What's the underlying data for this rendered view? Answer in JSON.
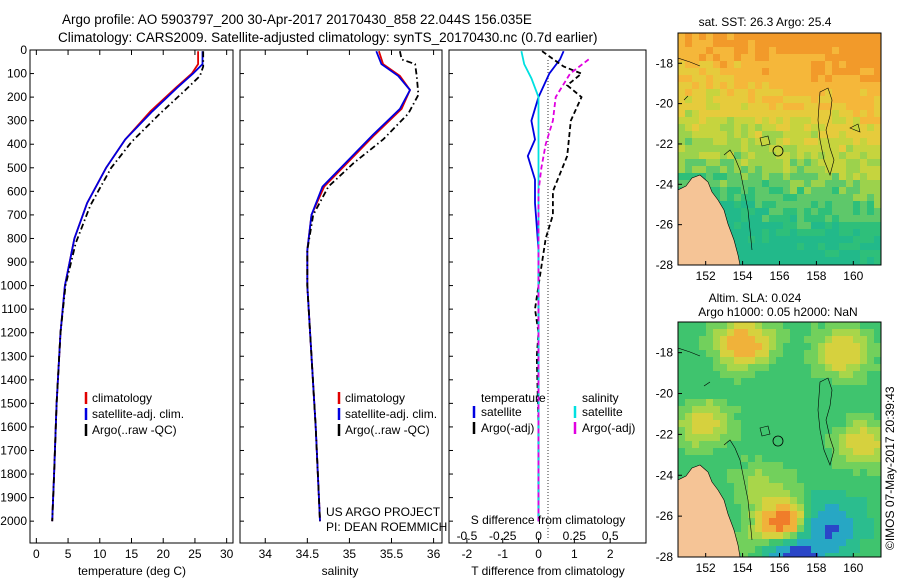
{
  "header": {
    "line1": "Argo profile: AO 5903797_200 30-Apr-2017 20170430_858 22.044S 156.035E",
    "line2": "Climatology: CARS2009. Satellite-adjusted climatology: synTS_20170430.nc (0.7d earlier)"
  },
  "colors": {
    "climatology": "#e00000",
    "satellite": "#0000e0",
    "argo": "#000000",
    "s_satellite": "#00e0e0",
    "s_argo": "#e000e0",
    "land": "#f5c496"
  },
  "chart_data": [
    {
      "type": "line",
      "id": "temperature",
      "xlabel": "temperature (deg C)",
      "xlim": [
        -1,
        31
      ],
      "xticks": [
        0,
        5,
        10,
        15,
        20,
        25,
        30
      ],
      "ylim": [
        0,
        2080
      ],
      "yticks": [
        0,
        100,
        200,
        300,
        400,
        500,
        600,
        700,
        800,
        900,
        1000,
        1100,
        1200,
        1300,
        1400,
        1500,
        1600,
        1700,
        1800,
        1900,
        2000
      ],
      "legend": [
        "climatology",
        "satellite-adj. clim.",
        "Argo(..raw -QC)"
      ],
      "series": [
        {
          "name": "climatology",
          "style": "solid",
          "color": "#e00000",
          "points": [
            [
              25.5,
              5
            ],
            [
              25.5,
              60
            ],
            [
              24.5,
              100
            ],
            [
              22,
              160
            ],
            [
              18,
              260
            ],
            [
              14,
              380
            ],
            [
              11,
              500
            ],
            [
              8,
              650
            ],
            [
              6,
              800
            ],
            [
              4.5,
              1000
            ],
            [
              3.8,
              1200
            ],
            [
              3.2,
              1500
            ],
            [
              2.8,
              1800
            ],
            [
              2.5,
              2000
            ]
          ]
        },
        {
          "name": "satellite-adj. clim.",
          "style": "solid",
          "color": "#0000e0",
          "points": [
            [
              26.2,
              5
            ],
            [
              26.2,
              60
            ],
            [
              24.7,
              100
            ],
            [
              22.2,
              160
            ],
            [
              18.3,
              260
            ],
            [
              14,
              380
            ],
            [
              11,
              500
            ],
            [
              8,
              650
            ],
            [
              6,
              800
            ],
            [
              4.5,
              1000
            ],
            [
              3.8,
              1200
            ],
            [
              3.2,
              1500
            ],
            [
              2.8,
              1800
            ],
            [
              2.5,
              2000
            ]
          ]
        },
        {
          "name": "Argo(..raw -QC)",
          "style": "dashdot",
          "color": "#000000",
          "points": [
            [
              26.3,
              5
            ],
            [
              26.3,
              70
            ],
            [
              25.8,
              110
            ],
            [
              23.5,
              170
            ],
            [
              19.5,
              270
            ],
            [
              15,
              390
            ],
            [
              11.8,
              500
            ],
            [
              8.5,
              660
            ],
            [
              6.2,
              820
            ],
            [
              4.6,
              1000
            ],
            [
              3.8,
              1200
            ],
            [
              3.2,
              1500
            ],
            [
              2.8,
              1800
            ],
            [
              2.5,
              2000
            ]
          ]
        }
      ]
    },
    {
      "type": "line",
      "id": "salinity",
      "xlabel": "salinity",
      "xlim": [
        33.7,
        36.1
      ],
      "xticks": [
        34,
        34.5,
        35,
        35.5,
        36
      ],
      "xticklabels": [
        "34",
        "34.5",
        "35",
        "35.5",
        "36"
      ],
      "ylim": [
        0,
        2080
      ],
      "legend": [
        "climatology",
        "satellite-adj. clim.",
        "Argo(..raw -QC)"
      ],
      "annotation": [
        "US ARGO PROJECT",
        "PI: DEAN ROEMMICH"
      ],
      "series": [
        {
          "name": "climatology",
          "style": "solid",
          "color": "#e00000",
          "points": [
            [
              35.35,
              5
            ],
            [
              35.4,
              60
            ],
            [
              35.6,
              110
            ],
            [
              35.72,
              170
            ],
            [
              35.62,
              250
            ],
            [
              35.3,
              360
            ],
            [
              35,
              470
            ],
            [
              34.7,
              580
            ],
            [
              34.55,
              700
            ],
            [
              34.5,
              850
            ],
            [
              34.5,
              1000
            ],
            [
              34.55,
              1300
            ],
            [
              34.6,
              1600
            ],
            [
              34.65,
              2000
            ]
          ]
        },
        {
          "name": "satellite-adj. clim.",
          "style": "solid",
          "color": "#0000e0",
          "points": [
            [
              35.32,
              5
            ],
            [
              35.38,
              60
            ],
            [
              35.58,
              110
            ],
            [
              35.72,
              170
            ],
            [
              35.6,
              250
            ],
            [
              35.28,
              360
            ],
            [
              34.98,
              470
            ],
            [
              34.68,
              580
            ],
            [
              34.55,
              700
            ],
            [
              34.5,
              850
            ],
            [
              34.5,
              1000
            ],
            [
              34.55,
              1300
            ],
            [
              34.6,
              1600
            ],
            [
              34.65,
              2000
            ]
          ]
        },
        {
          "name": "Argo(..raw -QC)",
          "style": "dashdot",
          "color": "#000000",
          "points": [
            [
              35.6,
              5
            ],
            [
              35.62,
              40
            ],
            [
              35.78,
              60
            ],
            [
              35.8,
              110
            ],
            [
              35.82,
              190
            ],
            [
              35.7,
              270
            ],
            [
              35.4,
              380
            ],
            [
              35.05,
              480
            ],
            [
              34.75,
              580
            ],
            [
              34.57,
              700
            ],
            [
              34.5,
              850
            ],
            [
              34.5,
              1000
            ],
            [
              34.55,
              1300
            ],
            [
              34.6,
              1600
            ],
            [
              34.65,
              2000
            ]
          ]
        }
      ]
    },
    {
      "type": "line",
      "id": "differences",
      "xlabel": "T difference from climatology",
      "xlim": [
        -2.5,
        3
      ],
      "xticks": [
        -2,
        -1,
        0,
        1,
        2
      ],
      "top_axis_label": "S difference from climatology",
      "top_ticks": [
        -0.5,
        -0.25,
        0,
        0.25,
        0.5
      ],
      "top_ticklabels": [
        "-0.5",
        "-0.25",
        "0",
        "0.25",
        "0.5"
      ],
      "legend_titles": [
        "temperature",
        "salinity"
      ],
      "legend": [
        "satellite",
        "Argo(-adj)",
        "satellite",
        "Argo(-adj)"
      ],
      "series": [
        {
          "name": "T satellite",
          "style": "solid",
          "color": "#0000e0",
          "points": [
            [
              0.7,
              5
            ],
            [
              0.6,
              40
            ],
            [
              0.3,
              100
            ],
            [
              0,
              200
            ],
            [
              -0.2,
              300
            ],
            [
              -0.1,
              380
            ],
            [
              -0.3,
              450
            ],
            [
              -0.1,
              550
            ],
            [
              -0.1,
              650
            ],
            [
              -0.05,
              750
            ],
            [
              0,
              850
            ],
            [
              0,
              1000
            ],
            [
              0,
              2000
            ]
          ]
        },
        {
          "name": "T Argo(-adj)",
          "style": "dashed",
          "color": "#000000",
          "points": [
            [
              0.1,
              5
            ],
            [
              0.7,
              70
            ],
            [
              1.2,
              100
            ],
            [
              0.8,
              150
            ],
            [
              1.2,
              200
            ],
            [
              0.9,
              300
            ],
            [
              0.8,
              450
            ],
            [
              0.4,
              600
            ],
            [
              0.4,
              700
            ],
            [
              0.2,
              800
            ],
            [
              0.1,
              900
            ],
            [
              0,
              1000
            ],
            [
              -0.1,
              1100
            ],
            [
              0,
              1200
            ],
            [
              -0.05,
              1300
            ],
            [
              0,
              1600
            ],
            [
              0,
              2000
            ]
          ]
        },
        {
          "name": "S satellite",
          "style": "solid",
          "color": "#00e0e0",
          "points": [
            [
              -0.12,
              5
            ],
            [
              -0.1,
              60
            ],
            [
              -0.05,
              120
            ],
            [
              0,
              200
            ],
            [
              0,
              2000
            ]
          ]
        },
        {
          "name": "S Argo(-adj)",
          "style": "dashed",
          "color": "#e000e0",
          "points": [
            [
              0.35,
              40
            ],
            [
              0.22,
              100
            ],
            [
              0.12,
              200
            ],
            [
              0.1,
              300
            ],
            [
              0.05,
              400
            ],
            [
              0.02,
              500
            ],
            [
              0,
              600
            ],
            [
              0,
              2000
            ]
          ]
        }
      ]
    },
    {
      "type": "heatmap",
      "id": "sst-map",
      "title": "sat. SST: 26.3 Argo: 25.4",
      "xticks": [
        152,
        154,
        156,
        158,
        160
      ],
      "yticks": [
        -18,
        -20,
        -22,
        -24,
        -26,
        -28
      ],
      "xlim": [
        150.5,
        161.5
      ],
      "ylim": [
        -28,
        -16.5
      ]
    },
    {
      "type": "heatmap",
      "id": "sla-map",
      "title1": "Altim. SLA: 0.024",
      "title2": "Argo h1000: 0.05 h2000: NaN",
      "xticks": [
        152,
        154,
        156,
        158,
        160
      ],
      "yticks": [
        -18,
        -20,
        -22,
        -24,
        -26,
        -28
      ],
      "xlim": [
        150.5,
        161.5
      ],
      "ylim": [
        -28,
        -16.5
      ]
    }
  ],
  "footer": {
    "timestamp": "©IMOS 07-May-2017 20:39:43"
  }
}
